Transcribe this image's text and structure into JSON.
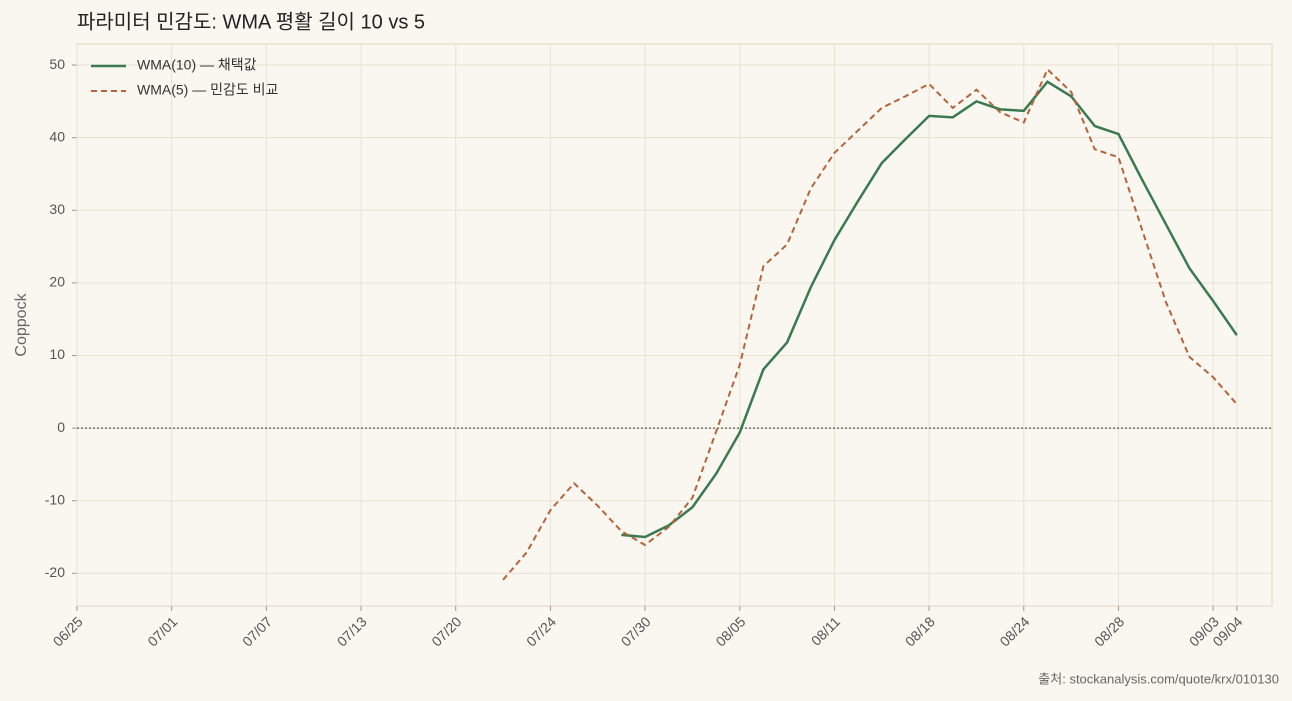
{
  "chart_data": {
    "type": "line",
    "title": "파라미터 민감도: WMA 평활 길이 10 vs 5",
    "y_label": "Coppock",
    "source": "출처: stockanalysis.com/quote/krx/010130",
    "categories": [
      "06/25",
      null,
      null,
      null,
      "07/01",
      null,
      null,
      null,
      "07/07",
      null,
      null,
      null,
      "07/13",
      null,
      null,
      null,
      "07/20",
      null,
      null,
      null,
      "07/24",
      null,
      null,
      null,
      "07/30",
      null,
      null,
      null,
      "08/05",
      null,
      null,
      null,
      "08/11",
      null,
      null,
      null,
      "08/18",
      null,
      null,
      null,
      "08/24",
      null,
      null,
      null,
      "08/28",
      null,
      null,
      null,
      "09/03",
      "09/04"
    ],
    "series": [
      {
        "name": "WMA(10) — 채택값",
        "color": "#3a7a50",
        "dash": false,
        "values": [
          null,
          null,
          null,
          null,
          null,
          null,
          null,
          null,
          null,
          null,
          null,
          null,
          null,
          null,
          null,
          null,
          null,
          null,
          null,
          null,
          null,
          null,
          null,
          -14.7,
          -15.0,
          -13.4,
          -10.9,
          -6.3,
          -0.6,
          8.1,
          11.8,
          19.4,
          25.9,
          31.3,
          36.5,
          39.8,
          43.0,
          42.8,
          45.0,
          43.9,
          43.7,
          47.7,
          45.7,
          41.6,
          40.5,
          34.2,
          28.1,
          22.0,
          17.5,
          12.8
        ]
      },
      {
        "name": "WMA(5) — 민감도 비교",
        "color": "#b5643a",
        "dash": true,
        "values": [
          null,
          null,
          null,
          null,
          null,
          null,
          null,
          null,
          null,
          null,
          null,
          null,
          null,
          null,
          null,
          null,
          null,
          null,
          -20.9,
          -17.1,
          -11.3,
          -7.6,
          -10.7,
          -14.2,
          -16.1,
          -13.6,
          -9.6,
          -0.5,
          8.7,
          22.3,
          25.3,
          33.0,
          37.9,
          41.0,
          44.1,
          45.7,
          47.4,
          44.1,
          46.6,
          43.5,
          42.1,
          49.4,
          46.3,
          38.4,
          37.3,
          27.3,
          17.4,
          9.8,
          7.0,
          3.3
        ]
      }
    ],
    "ylim": [
      -24.5,
      52.9
    ],
    "yticks": [
      -20,
      -10,
      0,
      10,
      20,
      30,
      40,
      50
    ],
    "hline": 0,
    "grid": true,
    "legend": "upper left"
  }
}
